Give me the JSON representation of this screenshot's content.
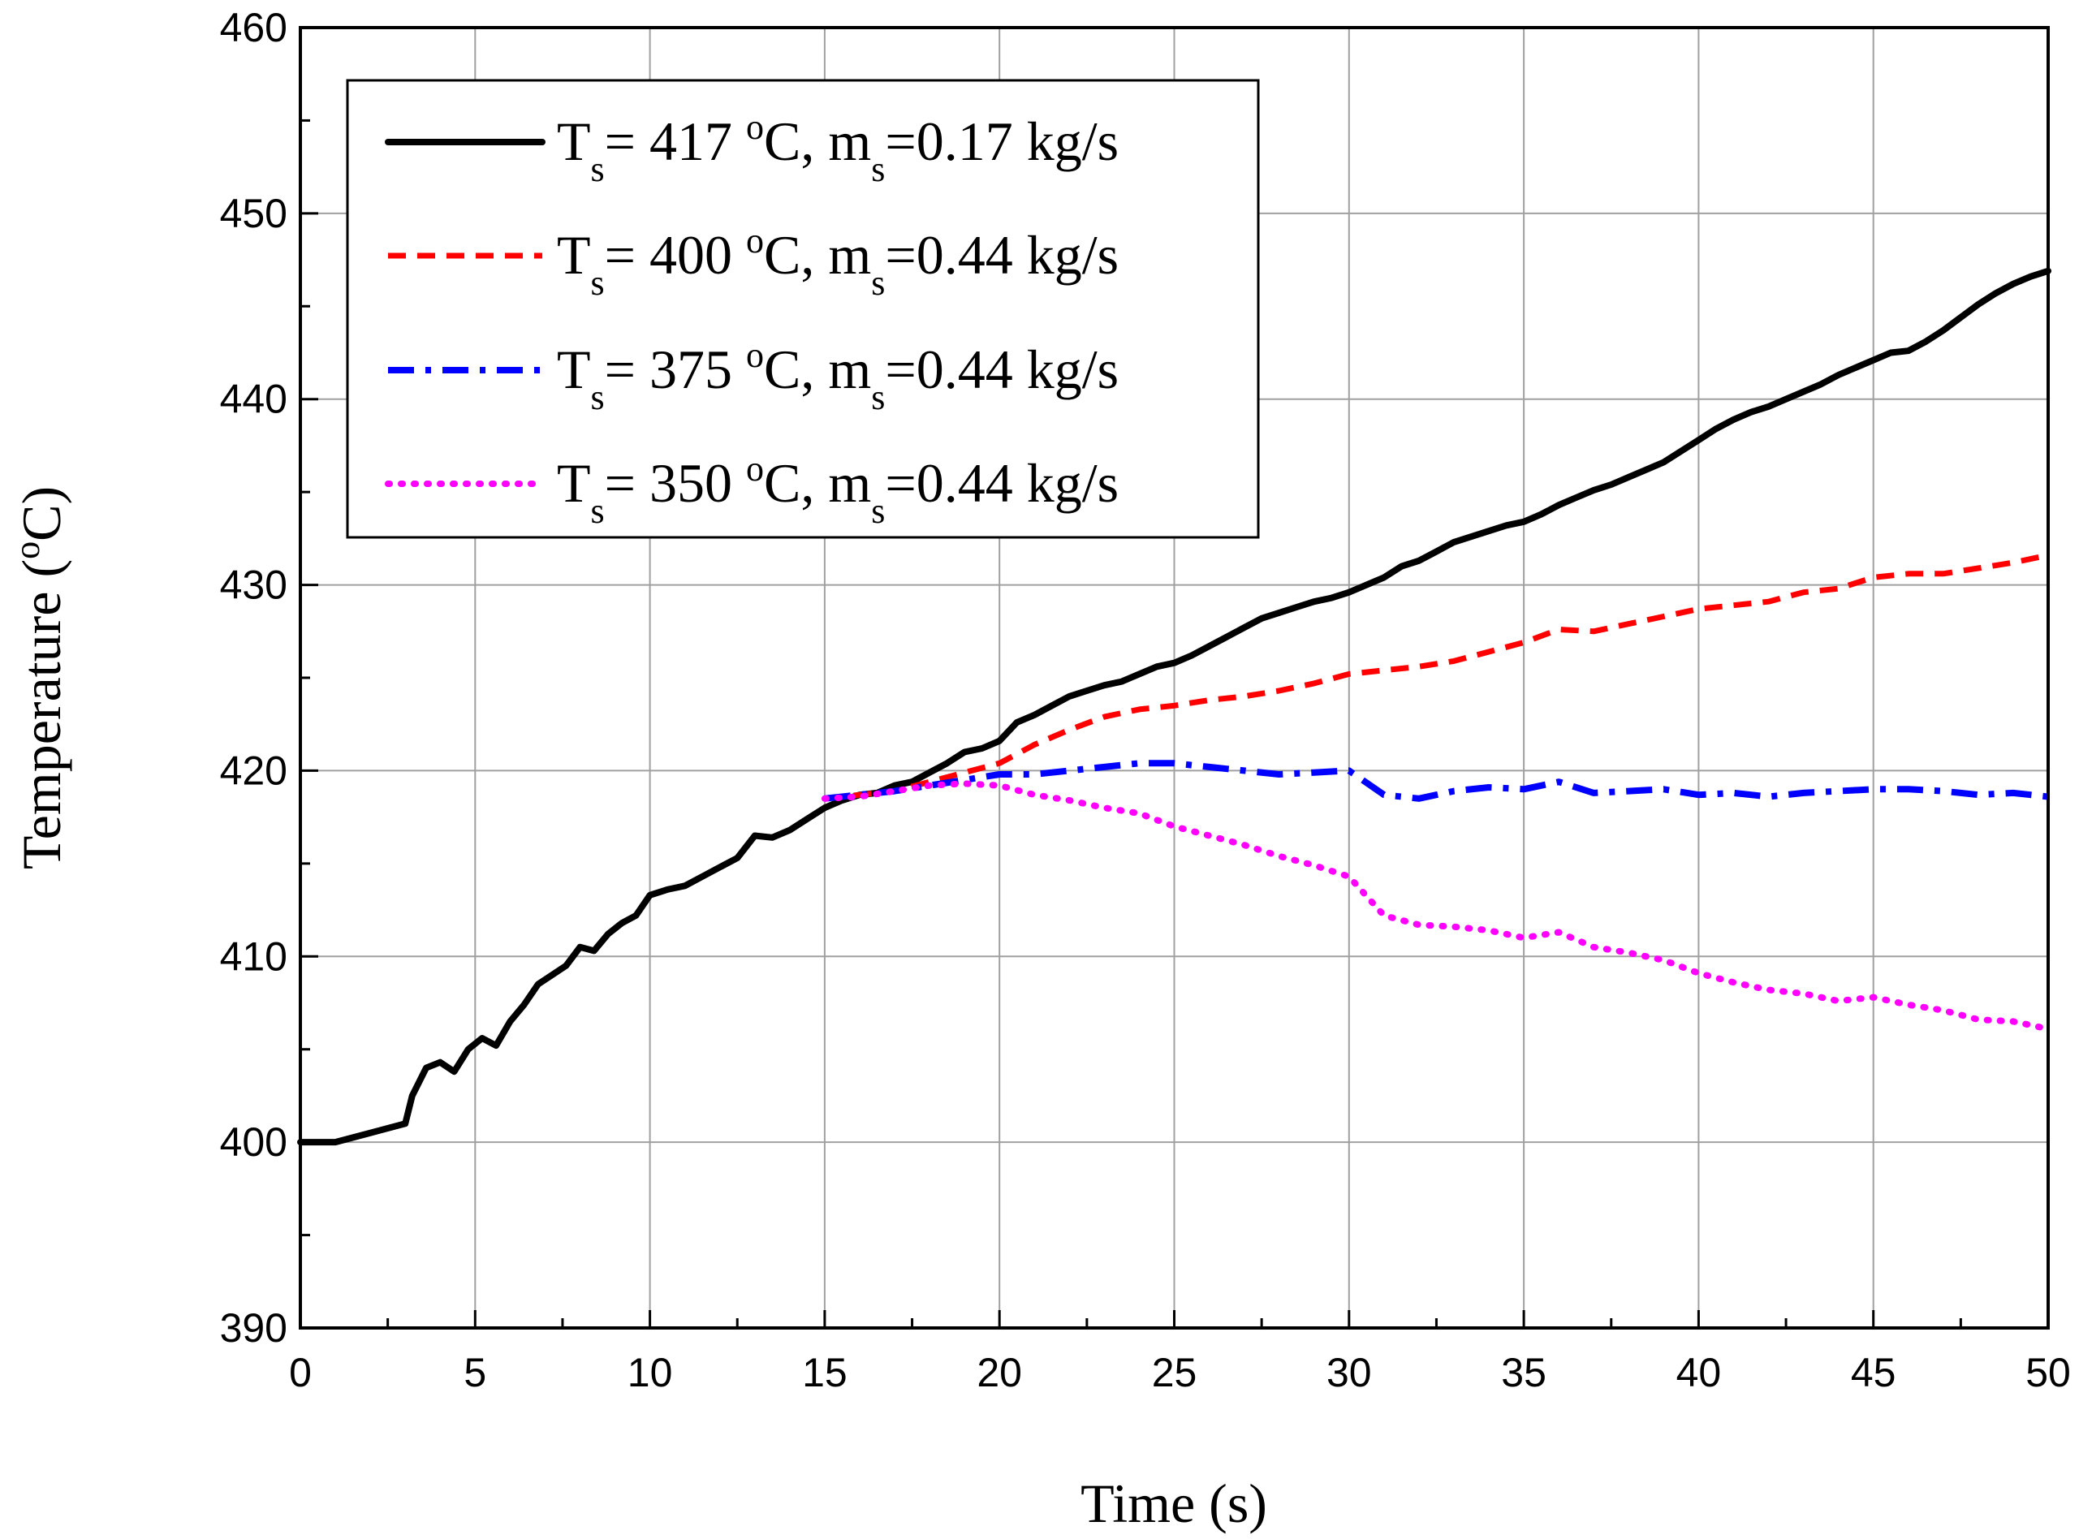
{
  "chart_data": {
    "type": "line",
    "title": "",
    "xlabel": "Time (s)",
    "ylabel": {
      "main": "Temperature (",
      "sup": "o",
      "unit": "C)"
    },
    "xlim": [
      0,
      50
    ],
    "ylim": [
      390,
      460
    ],
    "xticks": [
      0,
      5,
      10,
      15,
      20,
      25,
      30,
      35,
      40,
      45,
      50
    ],
    "yticks": [
      390,
      400,
      410,
      420,
      430,
      440,
      450,
      460
    ],
    "grid": true,
    "legend_position": "top-left",
    "series": [
      {
        "name": "Ts= 417 oC, ms=0.17 kg/s",
        "label_parts": {
          "a": "T",
          "a_sub": "s",
          "b": "= 417 ",
          "sup": "o",
          "c": "C, m",
          "c_sub": "s",
          "d": "=0.17 kg/s"
        },
        "color": "#000000",
        "style": "solid",
        "x": [
          0,
          1,
          2,
          3,
          3.2,
          3.6,
          4,
          4.4,
          4.8,
          5.2,
          5.6,
          6,
          6.4,
          6.8,
          7.2,
          7.6,
          8,
          8.4,
          8.8,
          9.2,
          9.6,
          10,
          10.5,
          11,
          11.5,
          12,
          12.5,
          13,
          13.5,
          14,
          14.5,
          15,
          15.5,
          16,
          16.5,
          17,
          17.5,
          18,
          18.5,
          19,
          19.5,
          20,
          20.5,
          21,
          21.5,
          22,
          22.5,
          23,
          23.5,
          24,
          24.5,
          25,
          25.5,
          26,
          26.5,
          27,
          27.5,
          28,
          28.5,
          29,
          29.5,
          30,
          30.5,
          31,
          31.5,
          32,
          32.5,
          33,
          33.5,
          34,
          34.5,
          35,
          35.5,
          36,
          36.5,
          37,
          37.5,
          38,
          38.5,
          39,
          39.5,
          40,
          40.5,
          41,
          41.5,
          42,
          42.5,
          43,
          43.5,
          44,
          44.5,
          45,
          45.5,
          46,
          46.5,
          47,
          47.5,
          48,
          48.5,
          49,
          49.5,
          50
        ],
        "y": [
          400,
          400,
          400.5,
          401,
          402.5,
          404,
          404.3,
          403.8,
          405,
          405.6,
          405.2,
          406.5,
          407.4,
          408.5,
          409,
          409.5,
          410.5,
          410.3,
          411.2,
          411.8,
          412.2,
          413.3,
          413.6,
          413.8,
          414.3,
          414.8,
          415.3,
          416.5,
          416.4,
          416.8,
          417.4,
          418,
          418.4,
          418.7,
          418.8,
          419.2,
          419.4,
          419.9,
          420.4,
          421,
          421.2,
          421.6,
          422.6,
          423,
          423.5,
          424,
          424.3,
          424.6,
          424.8,
          425.2,
          425.6,
          425.8,
          426.2,
          426.7,
          427.2,
          427.7,
          428.2,
          428.5,
          428.8,
          429.1,
          429.3,
          429.6,
          430,
          430.4,
          431,
          431.3,
          431.8,
          432.3,
          432.6,
          432.9,
          433.2,
          433.4,
          433.8,
          434.3,
          434.7,
          435.1,
          435.4,
          435.8,
          436.2,
          436.6,
          437.2,
          437.8,
          438.4,
          438.9,
          439.3,
          439.6,
          440,
          440.4,
          440.8,
          441.3,
          441.7,
          442.1,
          442.5,
          442.6,
          443.1,
          443.7,
          444.4,
          445.1,
          445.7,
          446.2,
          446.6,
          446.9
        ]
      },
      {
        "name": "Ts= 400 oC, ms=0.44 kg/s",
        "label_parts": {
          "a": "T",
          "a_sub": "s",
          "b": "= 400 ",
          "sup": "o",
          "c": "C, m",
          "c_sub": "s",
          "d": "=0.44 kg/s"
        },
        "color": "#ff0000",
        "style": "dashed",
        "x": [
          15,
          16,
          17,
          18,
          19,
          20,
          21,
          22,
          23,
          24,
          25,
          26,
          27,
          28,
          29,
          30,
          31,
          32,
          33,
          34,
          35,
          36,
          37,
          38,
          39,
          40,
          41,
          42,
          43,
          44,
          45,
          46,
          47,
          48,
          49,
          50
        ],
        "y": [
          418.5,
          418.7,
          418.9,
          419.4,
          419.9,
          420.4,
          421.4,
          422.2,
          422.9,
          423.3,
          423.5,
          423.8,
          424,
          424.3,
          424.7,
          425.2,
          425.4,
          425.6,
          425.9,
          426.4,
          426.9,
          427.6,
          427.5,
          427.9,
          428.3,
          428.7,
          428.9,
          429.1,
          429.6,
          429.8,
          430.4,
          430.6,
          430.6,
          430.9,
          431.2,
          431.6
        ]
      },
      {
        "name": "Ts= 375 oC, ms=0.44 kg/s",
        "label_parts": {
          "a": "T",
          "a_sub": "s",
          "b": "= 375 ",
          "sup": "o",
          "c": "C, m",
          "c_sub": "s",
          "d": "=0.44 kg/s"
        },
        "color": "#0000ff",
        "style": "dashdot",
        "x": [
          15,
          16,
          17,
          18,
          19,
          20,
          21,
          22,
          23,
          24,
          25,
          26,
          27,
          28,
          29,
          30,
          31,
          32,
          33,
          34,
          35,
          36,
          37,
          38,
          39,
          40,
          41,
          42,
          43,
          44,
          45,
          46,
          47,
          48,
          49,
          50
        ],
        "y": [
          418.5,
          418.7,
          418.9,
          419.2,
          419.5,
          419.8,
          419.8,
          420,
          420.2,
          420.4,
          420.4,
          420.2,
          420,
          419.8,
          419.9,
          420,
          418.7,
          418.5,
          418.9,
          419.1,
          419,
          419.4,
          418.8,
          418.9,
          419,
          418.7,
          418.8,
          418.6,
          418.8,
          418.9,
          419,
          419,
          418.9,
          418.7,
          418.8,
          418.6
        ]
      },
      {
        "name": "Ts= 350 oC, ms=0.44 kg/s",
        "label_parts": {
          "a": "T",
          "a_sub": "s",
          "b": "= 350 ",
          "sup": "o",
          "c": "C, m",
          "c_sub": "s",
          "d": "=0.44 kg/s"
        },
        "color": "#ff00ff",
        "style": "dotted",
        "x": [
          15,
          16,
          17,
          18,
          19,
          20,
          21,
          22,
          23,
          24,
          25,
          26,
          27,
          28,
          29,
          30,
          31,
          32,
          33,
          34,
          35,
          36,
          37,
          38,
          39,
          40,
          41,
          42,
          43,
          44,
          45,
          46,
          47,
          48,
          49,
          50
        ],
        "y": [
          418.5,
          418.6,
          418.9,
          419.2,
          419.3,
          419.2,
          418.7,
          418.4,
          418,
          417.7,
          417,
          416.5,
          416,
          415.4,
          414.9,
          414.3,
          412.2,
          411.7,
          411.6,
          411.4,
          411,
          411.3,
          410.5,
          410.2,
          409.8,
          409.1,
          408.6,
          408.2,
          408,
          407.6,
          407.8,
          407.4,
          407.1,
          406.6,
          406.5,
          406.1
        ]
      }
    ]
  }
}
